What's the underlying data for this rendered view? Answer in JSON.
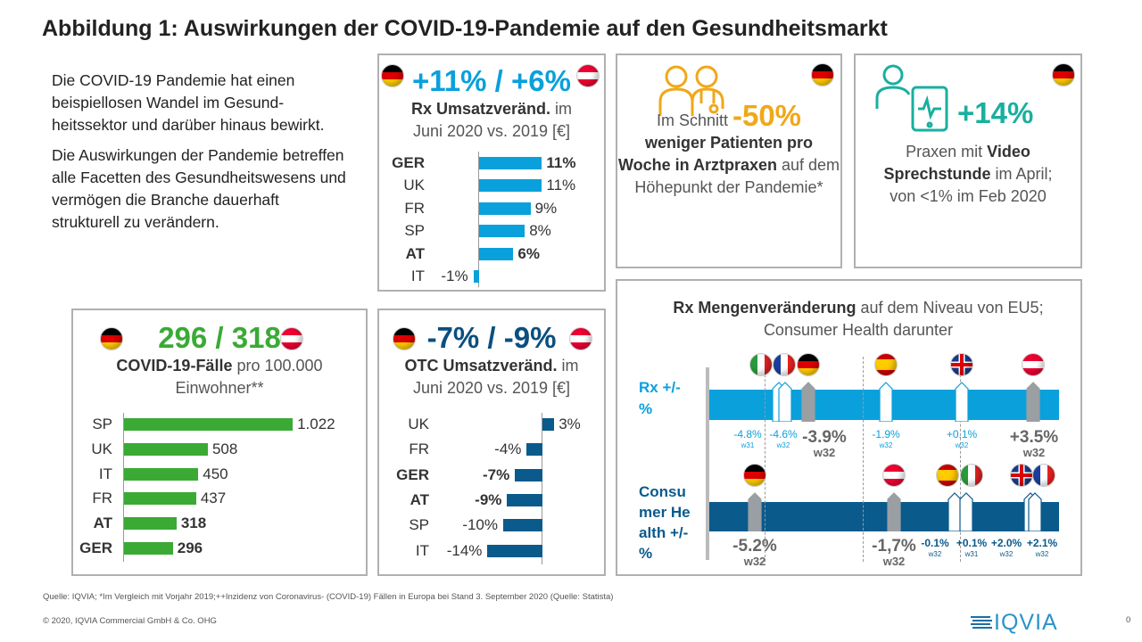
{
  "title": "Abbildung 1: Auswirkungen der COVID-19-Pandemie auf den Gesundheitsmarkt",
  "intro": [
    "Die COVID-19 Pandemie hat einen beispiellosen Wandel im Gesund-heitssektor und darüber hinaus bewirkt.",
    "Die Auswirkungen der Pandemie betreffen alle Facetten des Gesundheitswesens und vermögen die Branche dauerhaft strukturell zu verändern."
  ],
  "colors": {
    "green": "#3aaa35",
    "light_blue": "#0aa0dc",
    "dark_blue": "#0a5a8c",
    "orange": "#f0a818",
    "teal": "#1aaf9f"
  },
  "rx_panel": {
    "headline": "+11% / +6%",
    "sub_bold": "Rx Umsatzveränd.",
    "sub_rest": " im",
    "sub_line2": "Juni 2020 vs. 2019 [€]",
    "flags": [
      "de",
      "at"
    ]
  },
  "otc_panel": {
    "headline": "-7% / -9%",
    "sub_bold": "OTC Umsatzveränd.",
    "sub_rest": " im",
    "sub_line2": "Juni 2020 vs. 2019 [€]",
    "flags": [
      "de",
      "at"
    ]
  },
  "covid_panel": {
    "headline": "296 / 318",
    "sub_bold": "COVID-19-Fälle",
    "sub_rest": " pro 100.000",
    "sub_line2": "Einwohner**",
    "flags": [
      "de",
      "at"
    ]
  },
  "patients_panel": {
    "icon": "doctors-icon",
    "pre": "Im Schnitt ",
    "value": "-50%",
    "bold": "weniger Patienten pro Woche in Arztpraxen",
    "rest": " auf dem Höhepunkt der Pandemie*",
    "flag": "de"
  },
  "video_panel": {
    "icon": "tablet-video-call-icon",
    "value": "+14%",
    "pre": "Praxen mit ",
    "bold": "Video Sprechstunde",
    "rest": " im April; von <1% im Feb 2020",
    "flag": "de"
  },
  "chart_data": [
    {
      "type": "bar",
      "orientation": "horizontal",
      "title": "Rx Umsatzveränd. im Juni 2020 vs. 2019 [€]",
      "categories": [
        "GER",
        "UK",
        "FR",
        "SP",
        "AT",
        "IT"
      ],
      "values": [
        11,
        11,
        9,
        8,
        6,
        -1
      ],
      "labels": [
        "11%",
        "11%",
        "9%",
        "8%",
        "6%",
        "-1%"
      ],
      "bold": [
        "GER",
        "AT"
      ],
      "color": "#0aa0dc"
    },
    {
      "type": "bar",
      "orientation": "horizontal",
      "title": "COVID-19-Fälle pro 100.000 Einwohner**",
      "categories": [
        "SP",
        "UK",
        "IT",
        "FR",
        "AT",
        "GER"
      ],
      "values": [
        1022,
        508,
        450,
        437,
        318,
        296
      ],
      "labels": [
        "1.022",
        "508",
        "450",
        "437",
        "318",
        "296"
      ],
      "bold": [
        "AT",
        "GER"
      ],
      "color": "#3aaa35"
    },
    {
      "type": "bar",
      "orientation": "horizontal",
      "title": "OTC Umsatzveränd. im Juni 2020 vs. 2019 [€]",
      "categories": [
        "UK",
        "FR",
        "GER",
        "AT",
        "SP",
        "IT"
      ],
      "values": [
        3,
        -4,
        -7,
        -9,
        -10,
        -14
      ],
      "labels": [
        "3%",
        "-4%",
        "-7%",
        "-9%",
        "-10%",
        "-14%"
      ],
      "bold": [
        "GER",
        "AT"
      ],
      "color": "#0a5a8c"
    }
  ],
  "mengen": {
    "title_bold": "Rx Mengenveränderung",
    "title_rest": " auf dem Niveau von EU5; Consumer Health darunter",
    "rows": [
      {
        "label": "Rx +/- %",
        "color": "#0aa0dc",
        "markers": [
          {
            "country": "it",
            "value": "-4.8%",
            "week": "w31",
            "highlight": false
          },
          {
            "country": "fr",
            "value": "-4.6%",
            "week": "w32",
            "highlight": false
          },
          {
            "country": "de",
            "value": "-3.9%",
            "week": "w32",
            "highlight": true
          },
          {
            "country": "es",
            "value": "-1.9%",
            "week": "w32",
            "highlight": false
          },
          {
            "country": "uk",
            "value": "+0.1%",
            "week": "w32",
            "highlight": false
          },
          {
            "country": "at",
            "value": "+3.5%",
            "week": "w32",
            "highlight": true
          }
        ]
      },
      {
        "label": "Consu mer Health +/- %",
        "color": "#0a5a8c",
        "markers": [
          {
            "country": "de",
            "value": "-5.2%",
            "week": "w32",
            "highlight": true
          },
          {
            "country": "at",
            "value": "-1,7%",
            "week": "w32",
            "highlight": true
          },
          {
            "country": "es",
            "value": "-0.1%",
            "week": "w32",
            "highlight": false
          },
          {
            "country": "it",
            "value": "+0.1%",
            "week": "w31",
            "highlight": false
          },
          {
            "country": "uk",
            "value": "+2.0%",
            "week": "w32",
            "highlight": false
          },
          {
            "country": "fr",
            "value": "+2.1%",
            "week": "w32",
            "highlight": false
          }
        ]
      }
    ]
  },
  "footer": {
    "source": "Quelle: IQVIA; *Im Vergleich mit Vorjahr 2019;++Inzidenz  von Coronavirus- (COVID-19) Fällen in Europa bei Stand 3. September 2020 (Quelle: Statista)",
    "copyright": "© 2020, IQVIA Commercial GmbH & Co. OHG",
    "logo": "IQVIA",
    "page": "0"
  }
}
